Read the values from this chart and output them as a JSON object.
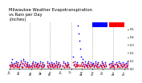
{
  "title": "Milwaukee Weather Evapotranspiration\nvs Rain per Day\n(Inches)",
  "title_fontsize": 3.8,
  "background_color": "#ffffff",
  "legend_blue": "#0000ff",
  "legend_red": "#ff0000",
  "ylim": [
    0,
    0.6
  ],
  "yticks": [
    0.0,
    0.1,
    0.2,
    0.3,
    0.4,
    0.5
  ],
  "grid_color": "#aaaaaa",
  "dot_size": 1.5,
  "rain_data": [
    [
      1,
      0.05
    ],
    [
      2,
      0.03
    ],
    [
      3,
      0.08
    ],
    [
      4,
      0.04
    ],
    [
      5,
      0.12
    ],
    [
      6,
      0.06
    ],
    [
      7,
      0.02
    ],
    [
      8,
      0.07
    ],
    [
      9,
      0.04
    ],
    [
      10,
      0.09
    ],
    [
      11,
      0.03
    ],
    [
      12,
      0.05
    ],
    [
      13,
      0.08
    ],
    [
      14,
      0.02
    ],
    [
      15,
      0.04
    ],
    [
      16,
      0.06
    ],
    [
      17,
      0.1
    ],
    [
      18,
      0.03
    ],
    [
      19,
      0.07
    ],
    [
      20,
      0.02
    ],
    [
      21,
      0.12
    ],
    [
      22,
      0.05
    ],
    [
      23,
      0.09
    ],
    [
      24,
      0.03
    ],
    [
      25,
      0.06
    ],
    [
      26,
      0.04
    ],
    [
      27,
      0.08
    ],
    [
      28,
      0.02
    ],
    [
      29,
      0.05
    ],
    [
      30,
      0.03
    ],
    [
      32,
      0.04
    ],
    [
      33,
      0.07
    ],
    [
      34,
      0.02
    ],
    [
      35,
      0.09
    ],
    [
      36,
      0.05
    ],
    [
      37,
      0.03
    ],
    [
      38,
      0.08
    ],
    [
      39,
      0.04
    ],
    [
      40,
      0.06
    ],
    [
      41,
      0.02
    ],
    [
      42,
      0.07
    ],
    [
      43,
      0.03
    ],
    [
      44,
      0.05
    ],
    [
      45,
      0.09
    ],
    [
      46,
      0.04
    ],
    [
      47,
      0.02
    ],
    [
      48,
      0.06
    ],
    [
      49,
      0.08
    ],
    [
      50,
      0.03
    ],
    [
      51,
      0.05
    ],
    [
      55,
      0.04
    ],
    [
      56,
      0.09
    ],
    [
      57,
      0.02
    ],
    [
      58,
      0.07
    ],
    [
      59,
      0.05
    ],
    [
      60,
      0.03
    ],
    [
      61,
      0.08
    ],
    [
      62,
      0.04
    ],
    [
      63,
      0.06
    ],
    [
      64,
      0.02
    ],
    [
      65,
      0.07
    ],
    [
      66,
      0.03
    ],
    [
      67,
      0.05
    ],
    [
      68,
      0.09
    ],
    [
      69,
      0.04
    ],
    [
      70,
      0.02
    ],
    [
      71,
      0.06
    ],
    [
      72,
      0.08
    ],
    [
      73,
      0.03
    ],
    [
      74,
      0.05
    ],
    [
      78,
      0.04
    ],
    [
      79,
      0.09
    ],
    [
      80,
      0.02
    ],
    [
      81,
      0.07
    ],
    [
      82,
      0.05
    ],
    [
      83,
      0.03
    ],
    [
      84,
      0.08
    ],
    [
      85,
      0.04
    ],
    [
      86,
      0.06
    ],
    [
      87,
      0.02
    ],
    [
      93,
      0.15
    ],
    [
      94,
      0.05
    ],
    [
      95,
      0.09
    ],
    [
      96,
      0.03
    ],
    [
      97,
      0.06
    ],
    [
      98,
      0.04
    ],
    [
      99,
      0.08
    ],
    [
      100,
      0.55
    ],
    [
      101,
      0.45
    ],
    [
      102,
      0.35
    ],
    [
      103,
      0.25
    ],
    [
      104,
      0.15
    ],
    [
      105,
      0.08
    ],
    [
      106,
      0.04
    ],
    [
      107,
      0.12
    ],
    [
      108,
      0.06
    ],
    [
      109,
      0.03
    ],
    [
      110,
      0.09
    ],
    [
      111,
      0.05
    ],
    [
      112,
      0.04
    ],
    [
      113,
      0.07
    ],
    [
      114,
      0.02
    ],
    [
      115,
      0.09
    ],
    [
      116,
      0.05
    ],
    [
      117,
      0.03
    ],
    [
      118,
      0.08
    ],
    [
      119,
      0.04
    ],
    [
      120,
      0.06
    ],
    [
      122,
      0.07
    ],
    [
      123,
      0.03
    ],
    [
      124,
      0.05
    ],
    [
      125,
      0.09
    ],
    [
      126,
      0.04
    ],
    [
      127,
      0.02
    ],
    [
      128,
      0.06
    ],
    [
      129,
      0.08
    ],
    [
      130,
      0.03
    ],
    [
      132,
      0.05
    ],
    [
      133,
      0.04
    ],
    [
      134,
      0.09
    ],
    [
      135,
      0.02
    ],
    [
      136,
      0.07
    ],
    [
      137,
      0.05
    ],
    [
      138,
      0.03
    ],
    [
      139,
      0.08
    ],
    [
      140,
      0.04
    ],
    [
      145,
      0.06
    ],
    [
      146,
      0.02
    ],
    [
      147,
      0.07
    ],
    [
      148,
      0.03
    ],
    [
      149,
      0.05
    ],
    [
      150,
      0.09
    ],
    [
      151,
      0.04
    ],
    [
      152,
      0.02
    ],
    [
      153,
      0.06
    ],
    [
      155,
      0.08
    ],
    [
      156,
      0.03
    ],
    [
      157,
      0.05
    ],
    [
      158,
      0.04
    ],
    [
      159,
      0.09
    ],
    [
      160,
      0.02
    ],
    [
      161,
      0.07
    ],
    [
      162,
      0.05
    ],
    [
      163,
      0.03
    ],
    [
      165,
      0.08
    ],
    [
      166,
      0.04
    ],
    [
      167,
      0.06
    ],
    [
      168,
      0.02
    ],
    [
      169,
      0.07
    ],
    [
      170,
      0.03
    ],
    [
      171,
      0.05
    ],
    [
      172,
      0.09
    ]
  ],
  "et_data": [
    [
      1,
      0.04
    ],
    [
      2,
      0.02
    ],
    [
      3,
      0.05
    ],
    [
      4,
      0.03
    ],
    [
      5,
      0.06
    ],
    [
      6,
      0.04
    ],
    [
      7,
      0.02
    ],
    [
      8,
      0.05
    ],
    [
      9,
      0.03
    ],
    [
      10,
      0.07
    ],
    [
      11,
      0.02
    ],
    [
      12,
      0.04
    ],
    [
      13,
      0.06
    ],
    [
      14,
      0.02
    ],
    [
      15,
      0.03
    ],
    [
      16,
      0.05
    ],
    [
      17,
      0.08
    ],
    [
      18,
      0.02
    ],
    [
      19,
      0.06
    ],
    [
      20,
      0.02
    ],
    [
      21,
      0.1
    ],
    [
      22,
      0.04
    ],
    [
      23,
      0.07
    ],
    [
      24,
      0.02
    ],
    [
      25,
      0.05
    ],
    [
      26,
      0.03
    ],
    [
      27,
      0.06
    ],
    [
      28,
      0.02
    ],
    [
      29,
      0.04
    ],
    [
      30,
      0.02
    ],
    [
      32,
      0.03
    ],
    [
      33,
      0.05
    ],
    [
      34,
      0.02
    ],
    [
      35,
      0.07
    ],
    [
      36,
      0.04
    ],
    [
      37,
      0.02
    ],
    [
      38,
      0.06
    ],
    [
      39,
      0.03
    ],
    [
      40,
      0.05
    ],
    [
      41,
      0.02
    ],
    [
      42,
      0.05
    ],
    [
      43,
      0.02
    ],
    [
      44,
      0.04
    ],
    [
      45,
      0.07
    ],
    [
      46,
      0.03
    ],
    [
      47,
      0.02
    ],
    [
      48,
      0.05
    ],
    [
      49,
      0.06
    ],
    [
      50,
      0.02
    ],
    [
      51,
      0.04
    ],
    [
      55,
      0.03
    ],
    [
      56,
      0.07
    ],
    [
      57,
      0.02
    ],
    [
      58,
      0.05
    ],
    [
      59,
      0.04
    ],
    [
      60,
      0.02
    ],
    [
      61,
      0.06
    ],
    [
      62,
      0.03
    ],
    [
      63,
      0.05
    ],
    [
      64,
      0.02
    ],
    [
      65,
      0.05
    ],
    [
      66,
      0.02
    ],
    [
      67,
      0.04
    ],
    [
      68,
      0.07
    ],
    [
      69,
      0.03
    ],
    [
      70,
      0.02
    ],
    [
      71,
      0.05
    ],
    [
      72,
      0.06
    ],
    [
      73,
      0.02
    ],
    [
      74,
      0.04
    ],
    [
      78,
      0.03
    ],
    [
      79,
      0.07
    ],
    [
      80,
      0.02
    ],
    [
      81,
      0.05
    ],
    [
      82,
      0.04
    ],
    [
      83,
      0.02
    ],
    [
      84,
      0.06
    ],
    [
      85,
      0.03
    ],
    [
      86,
      0.05
    ],
    [
      87,
      0.02
    ],
    [
      93,
      0.08
    ],
    [
      94,
      0.04
    ],
    [
      95,
      0.06
    ],
    [
      96,
      0.02
    ],
    [
      97,
      0.04
    ],
    [
      98,
      0.03
    ],
    [
      99,
      0.06
    ],
    [
      100,
      0.04
    ],
    [
      101,
      0.05
    ],
    [
      102,
      0.03
    ],
    [
      103,
      0.04
    ],
    [
      104,
      0.06
    ],
    [
      105,
      0.03
    ],
    [
      106,
      0.03
    ],
    [
      107,
      0.08
    ],
    [
      108,
      0.04
    ],
    [
      109,
      0.02
    ],
    [
      110,
      0.06
    ],
    [
      111,
      0.04
    ],
    [
      112,
      0.03
    ],
    [
      113,
      0.05
    ],
    [
      114,
      0.02
    ],
    [
      115,
      0.07
    ],
    [
      116,
      0.04
    ],
    [
      117,
      0.02
    ],
    [
      118,
      0.06
    ],
    [
      119,
      0.03
    ],
    [
      120,
      0.05
    ],
    [
      122,
      0.05
    ],
    [
      123,
      0.02
    ],
    [
      124,
      0.04
    ],
    [
      125,
      0.07
    ],
    [
      126,
      0.03
    ],
    [
      127,
      0.02
    ],
    [
      128,
      0.05
    ],
    [
      129,
      0.06
    ],
    [
      130,
      0.02
    ],
    [
      132,
      0.04
    ],
    [
      133,
      0.03
    ],
    [
      134,
      0.07
    ],
    [
      135,
      0.02
    ],
    [
      136,
      0.05
    ],
    [
      137,
      0.04
    ],
    [
      138,
      0.02
    ],
    [
      139,
      0.06
    ],
    [
      140,
      0.03
    ],
    [
      145,
      0.05
    ],
    [
      146,
      0.02
    ],
    [
      147,
      0.05
    ],
    [
      148,
      0.02
    ],
    [
      149,
      0.04
    ],
    [
      150,
      0.07
    ],
    [
      151,
      0.03
    ],
    [
      152,
      0.02
    ],
    [
      153,
      0.05
    ],
    [
      155,
      0.06
    ],
    [
      156,
      0.02
    ],
    [
      157,
      0.04
    ],
    [
      158,
      0.03
    ],
    [
      159,
      0.07
    ],
    [
      160,
      0.02
    ],
    [
      161,
      0.05
    ],
    [
      162,
      0.04
    ],
    [
      163,
      0.02
    ],
    [
      165,
      0.06
    ],
    [
      166,
      0.03
    ],
    [
      167,
      0.05
    ],
    [
      168,
      0.02
    ],
    [
      169,
      0.05
    ],
    [
      170,
      0.02
    ],
    [
      171,
      0.04
    ],
    [
      172,
      0.07
    ]
  ],
  "vlines_x": [
    30,
    59,
    90,
    120,
    151
  ],
  "xtick_positions": [
    1,
    15,
    32,
    46,
    60,
    75,
    90,
    105,
    121,
    136,
    152,
    167
  ],
  "xtick_labels": [
    "Jan",
    "Feb",
    "Mar",
    "Apr",
    "May",
    "Jun",
    "Jul",
    "Aug",
    "Sep",
    "Oct",
    "Nov",
    "Dec"
  ],
  "xmax": 172
}
